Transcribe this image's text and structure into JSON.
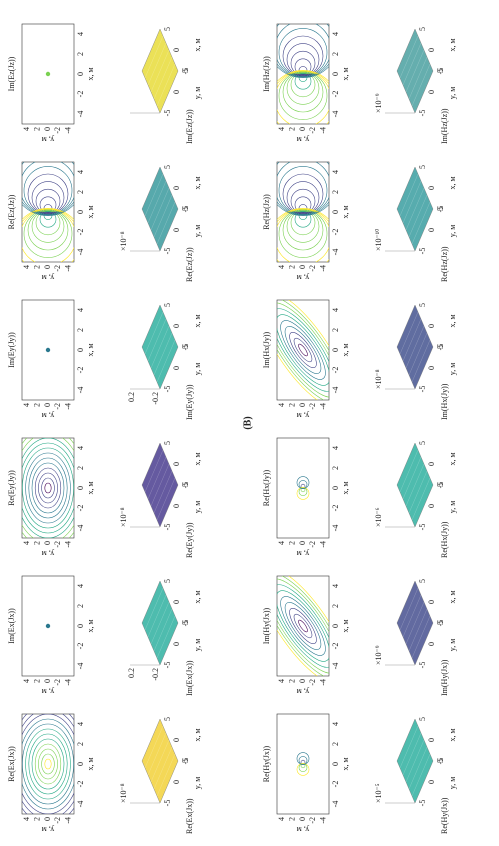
{
  "label": "(B)",
  "x_label": "x, м",
  "y_label": "y, м",
  "contour_xticks": [
    -4,
    -2,
    0,
    2,
    4
  ],
  "contour_yticks": [
    4,
    2,
    0,
    -2,
    -4
  ],
  "surface_ticks": [
    -5,
    0,
    5
  ],
  "panels": [
    {
      "title": "Re(Ex(Jx))",
      "scale": "×10⁻⁸"
    },
    {
      "title": "Im(Ex(Jx))",
      "zticks": [
        "0.2",
        "-0.2"
      ]
    },
    {
      "title": "Re(Ey(Jy))",
      "scale": "×10⁻⁸"
    },
    {
      "title": "Im(Ey(Jy))",
      "zticks": [
        "0.2",
        "-0.2"
      ]
    },
    {
      "title": "Re(Ez(Jz))",
      "scale": "×10⁻⁸"
    },
    {
      "title": "Im(Ez(Jz))"
    },
    {
      "title": "Re(Hy(Jx))",
      "scale": "×10⁻⁵"
    },
    {
      "title": "Im(Hy(Jx))",
      "scale": "×10⁻⁹"
    },
    {
      "title": "Re(Hx(Jy))",
      "scale": "×10⁻⁶"
    },
    {
      "title": "Im(Hx(Jy))",
      "scale": "×10⁻⁸"
    },
    {
      "title": "Re(Hz(Jz))",
      "scale": "×10⁻¹⁰"
    },
    {
      "title": "Im(Hz(Jz))",
      "scale": "×10⁻⁹"
    }
  ]
}
